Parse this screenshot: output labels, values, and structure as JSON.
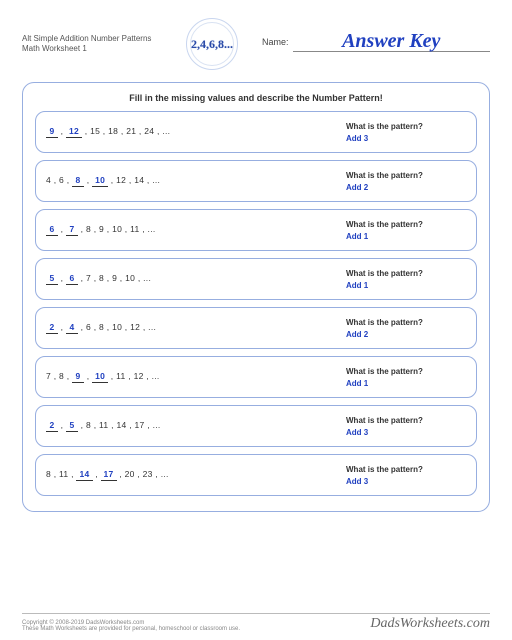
{
  "header": {
    "title_line1": "Alt Simple Addition Number Patterns",
    "title_line2": "Math Worksheet 1",
    "logo_text": "2,4,6,8...",
    "name_label": "Name:",
    "answer_key": "Answer Key"
  },
  "instruction": "Fill in the missing values and describe the Number Pattern!",
  "pattern_question": "What is the pattern?",
  "problems": [
    {
      "items": [
        {
          "v": "9",
          "blank": true
        },
        {
          "v": "12",
          "blank": true
        },
        {
          "v": "15",
          "blank": false
        },
        {
          "v": "18",
          "blank": false
        },
        {
          "v": "21",
          "blank": false
        },
        {
          "v": "24",
          "blank": false
        }
      ],
      "answer": "Add 3"
    },
    {
      "items": [
        {
          "v": "4",
          "blank": false
        },
        {
          "v": "6",
          "blank": false
        },
        {
          "v": "8",
          "blank": true
        },
        {
          "v": "10",
          "blank": true
        },
        {
          "v": "12",
          "blank": false
        },
        {
          "v": "14",
          "blank": false
        }
      ],
      "answer": "Add 2"
    },
    {
      "items": [
        {
          "v": "6",
          "blank": true
        },
        {
          "v": "7",
          "blank": true
        },
        {
          "v": "8",
          "blank": false
        },
        {
          "v": "9",
          "blank": false
        },
        {
          "v": "10",
          "blank": false
        },
        {
          "v": "11",
          "blank": false
        }
      ],
      "answer": "Add 1"
    },
    {
      "items": [
        {
          "v": "5",
          "blank": true
        },
        {
          "v": "6",
          "blank": true
        },
        {
          "v": "7",
          "blank": false
        },
        {
          "v": "8",
          "blank": false
        },
        {
          "v": "9",
          "blank": false
        },
        {
          "v": "10",
          "blank": false
        }
      ],
      "answer": "Add 1"
    },
    {
      "items": [
        {
          "v": "2",
          "blank": true
        },
        {
          "v": "4",
          "blank": true
        },
        {
          "v": "6",
          "blank": false
        },
        {
          "v": "8",
          "blank": false
        },
        {
          "v": "10",
          "blank": false
        },
        {
          "v": "12",
          "blank": false
        }
      ],
      "answer": "Add 2"
    },
    {
      "items": [
        {
          "v": "7",
          "blank": false
        },
        {
          "v": "8",
          "blank": false
        },
        {
          "v": "9",
          "blank": true
        },
        {
          "v": "10",
          "blank": true
        },
        {
          "v": "11",
          "blank": false
        },
        {
          "v": "12",
          "blank": false
        }
      ],
      "answer": "Add 1"
    },
    {
      "items": [
        {
          "v": "2",
          "blank": true
        },
        {
          "v": "5",
          "blank": true
        },
        {
          "v": "8",
          "blank": false
        },
        {
          "v": "11",
          "blank": false
        },
        {
          "v": "14",
          "blank": false
        },
        {
          "v": "17",
          "blank": false
        }
      ],
      "answer": "Add 3"
    },
    {
      "items": [
        {
          "v": "8",
          "blank": false
        },
        {
          "v": "11",
          "blank": false
        },
        {
          "v": "14",
          "blank": true
        },
        {
          "v": "17",
          "blank": true
        },
        {
          "v": "20",
          "blank": false
        },
        {
          "v": "23",
          "blank": false
        }
      ],
      "answer": "Add 3"
    }
  ],
  "footer": {
    "copyright": "Copyright © 2008-2019 DadsWorksheets.com",
    "tagline": "These Math Worksheets are provided for personal, homeschool or classroom use.",
    "brand": "DadsWorksheets.com"
  },
  "colors": {
    "border": "#97aee0",
    "answer_blue": "#2040c0",
    "text": "#333333"
  }
}
